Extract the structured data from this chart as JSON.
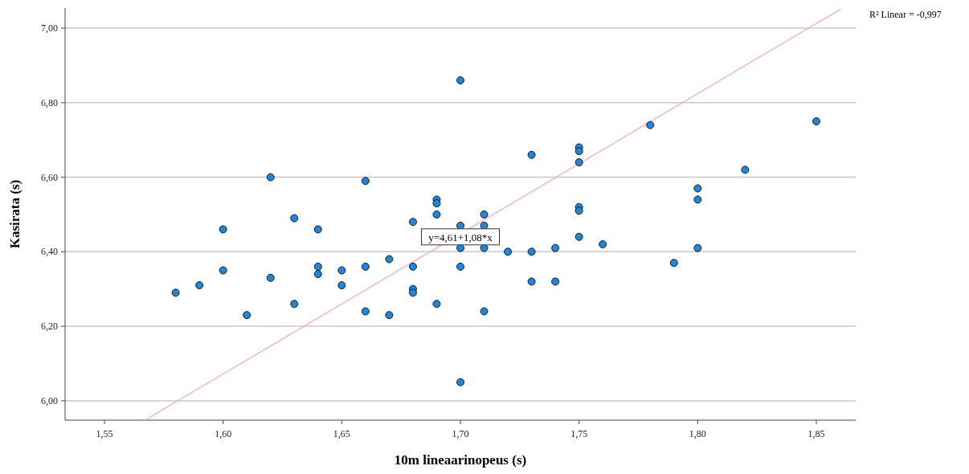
{
  "chart_data": {
    "type": "scatter",
    "xlabel": "10m lineaarinopeus (s)",
    "ylabel": "Kasirata (s)",
    "xlim": [
      1.5334,
      1.8666
    ],
    "ylim": [
      5.948,
      7.054
    ],
    "xticks": [
      {
        "value": 1.55,
        "label": "1,55"
      },
      {
        "value": 1.6,
        "label": "1,60"
      },
      {
        "value": 1.65,
        "label": "1,65"
      },
      {
        "value": 1.7,
        "label": "1,70"
      },
      {
        "value": 1.75,
        "label": "1,75"
      },
      {
        "value": 1.8,
        "label": "1,80"
      },
      {
        "value": 1.85,
        "label": "1,85"
      }
    ],
    "yticks": [
      {
        "value": 6.0,
        "label": "6,00"
      },
      {
        "value": 6.2,
        "label": "6,20"
      },
      {
        "value": 6.4,
        "label": "6,40"
      },
      {
        "value": 6.6,
        "label": "6,60"
      },
      {
        "value": 6.8,
        "label": "6,80"
      },
      {
        "value": 7.0,
        "label": "7,00"
      }
    ],
    "grid": "y",
    "marker": "circle",
    "annotations": [
      {
        "text": "y=4,61+1,08*x",
        "x": 1.7,
        "y": 6.44
      },
      "R² Linear = -0,997"
    ],
    "series": [
      {
        "color": "#1c87dc",
        "x": [
          1.58,
          1.59,
          1.6,
          1.6,
          1.61,
          1.62,
          1.62,
          1.63,
          1.63,
          1.64,
          1.64,
          1.64,
          1.65,
          1.65,
          1.66,
          1.66,
          1.66,
          1.67,
          1.67,
          1.68,
          1.68,
          1.68,
          1.68,
          1.69,
          1.69,
          1.69,
          1.69,
          1.7,
          1.7,
          1.7,
          1.7,
          1.7,
          1.71,
          1.71,
          1.71,
          1.71,
          1.72,
          1.73,
          1.73,
          1.73,
          1.74,
          1.74,
          1.75,
          1.75,
          1.75,
          1.75,
          1.75,
          1.75,
          1.76,
          1.78,
          1.79,
          1.8,
          1.8,
          1.8,
          1.82,
          1.85
        ],
        "values": [
          6.29,
          6.31,
          6.46,
          6.35,
          6.23,
          6.6,
          6.33,
          6.49,
          6.26,
          6.46,
          6.36,
          6.34,
          6.35,
          6.31,
          6.59,
          6.36,
          6.24,
          6.38,
          6.23,
          6.48,
          6.36,
          6.3,
          6.29,
          6.54,
          6.53,
          6.5,
          6.26,
          6.86,
          6.47,
          6.41,
          6.36,
          6.05,
          6.5,
          6.47,
          6.41,
          6.24,
          6.4,
          6.66,
          6.4,
          6.32,
          6.41,
          6.32,
          6.68,
          6.67,
          6.64,
          6.52,
          6.51,
          6.44,
          6.42,
          6.74,
          6.37,
          6.57,
          6.54,
          6.41,
          6.62,
          6.75
        ]
      },
      {
        "type": "line",
        "color": "#f7a8c8",
        "marker": "none",
        "x": [
          1.567,
          1.86
        ],
        "values": [
          5.948,
          7.05
        ]
      }
    ]
  }
}
